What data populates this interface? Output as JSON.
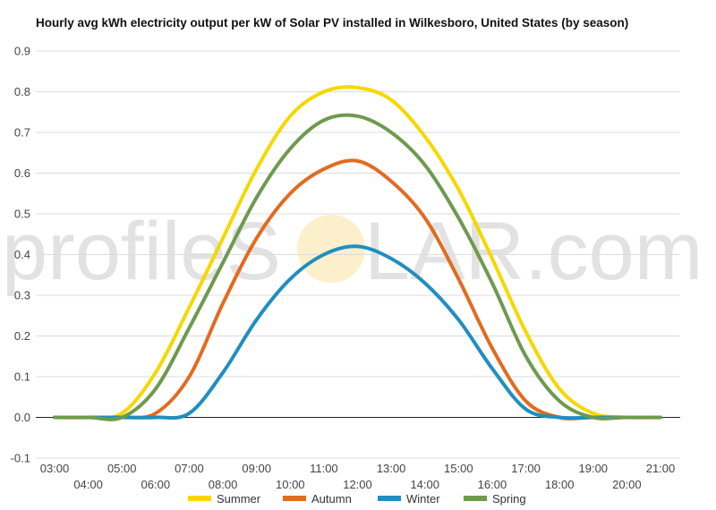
{
  "chart_data": {
    "type": "line",
    "title": "Hourly avg kWh electricity output per kW of Solar PV installed in Wilkesboro, United States (by season)",
    "xlabel": "",
    "ylabel": "",
    "ylim": [
      -0.1,
      0.9
    ],
    "yticks": [
      "-0.1",
      "0.0",
      "0.1",
      "0.2",
      "0.3",
      "0.4",
      "0.5",
      "0.6",
      "0.7",
      "0.8",
      "0.9"
    ],
    "x": [
      "03:00",
      "04:00",
      "05:00",
      "06:00",
      "07:00",
      "08:00",
      "09:00",
      "10:00",
      "11:00",
      "12:00",
      "13:00",
      "14:00",
      "15:00",
      "16:00",
      "17:00",
      "18:00",
      "19:00",
      "20:00",
      "21:00"
    ],
    "grid": true,
    "legend": "bottom-center",
    "watermark": {
      "left": "profileS",
      "right": "LAR.com"
    },
    "series": [
      {
        "name": "Summer",
        "color": "#f5d800",
        "values": [
          0,
          0,
          0.01,
          0.11,
          0.27,
          0.44,
          0.61,
          0.74,
          0.8,
          0.81,
          0.78,
          0.69,
          0.56,
          0.39,
          0.21,
          0.07,
          0.01,
          0,
          0
        ]
      },
      {
        "name": "Autumn",
        "color": "#e36b1f",
        "values": [
          0,
          0,
          0,
          0.01,
          0.1,
          0.28,
          0.44,
          0.55,
          0.61,
          0.63,
          0.58,
          0.49,
          0.34,
          0.17,
          0.04,
          0,
          0,
          0,
          0
        ]
      },
      {
        "name": "Winter",
        "color": "#1f8fbf",
        "values": [
          0,
          0,
          0,
          0,
          0.01,
          0.11,
          0.24,
          0.34,
          0.4,
          0.42,
          0.39,
          0.33,
          0.24,
          0.12,
          0.02,
          0,
          0,
          0,
          0
        ]
      },
      {
        "name": "Spring",
        "color": "#6e9a4f",
        "values": [
          0,
          0,
          0,
          0.07,
          0.22,
          0.38,
          0.54,
          0.66,
          0.73,
          0.74,
          0.7,
          0.62,
          0.49,
          0.33,
          0.15,
          0.04,
          0,
          0,
          0
        ]
      }
    ]
  }
}
